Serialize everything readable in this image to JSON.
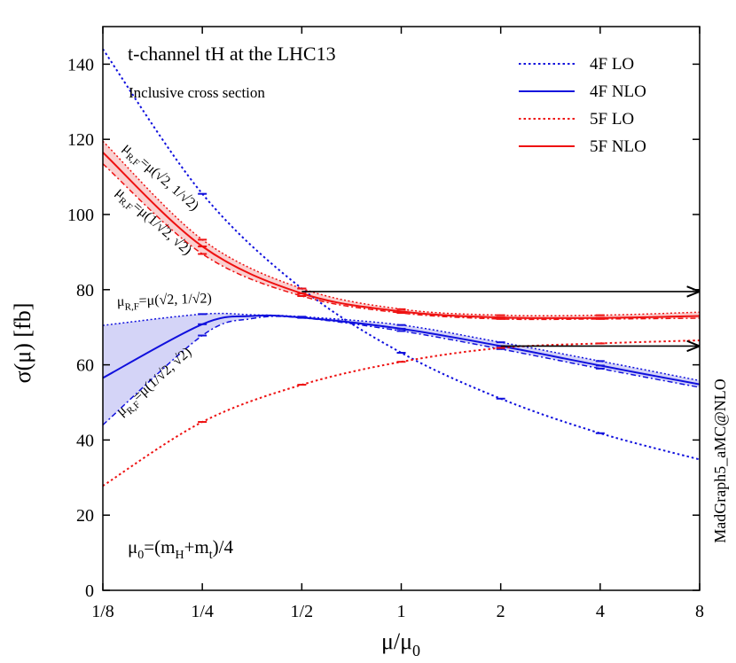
{
  "chart_data": {
    "type": "line",
    "title": "t-channel tH   at the LHC13",
    "subtitle": "Inclusive cross section",
    "xlabel": "μ/μ0",
    "ylabel": "σ(μ)   [fb]",
    "x_scale": "log2",
    "xlim": [
      0.125,
      8
    ],
    "ylim": [
      0,
      150
    ],
    "xticks": [
      {
        "value": 0.125,
        "label": "1/8"
      },
      {
        "value": 0.25,
        "label": "1/4"
      },
      {
        "value": 0.5,
        "label": "1/2"
      },
      {
        "value": 1,
        "label": "1"
      },
      {
        "value": 2,
        "label": "2"
      },
      {
        "value": 4,
        "label": "4"
      },
      {
        "value": 8,
        "label": "8"
      }
    ],
    "yticks": [
      0,
      20,
      40,
      60,
      80,
      100,
      120,
      140
    ],
    "grid": false,
    "legend_position": "top-right",
    "scale_annotation": "μ0=(mH+mt)/4",
    "generator_label": "MadGraph5_aMC@NLO",
    "scale_labels": {
      "upper": "μR,F=μ(√2, 1/√2)",
      "lower": "μR,F=μ(1/√2, √2)"
    },
    "series": [
      {
        "name": "4F  LO",
        "color": "#1010dd",
        "style": "dotted",
        "x": [
          0.125,
          0.25,
          0.5,
          1,
          2,
          4,
          8
        ],
        "y": [
          144,
          105.5,
          80.3,
          63.2,
          51.0,
          41.8,
          34.8
        ]
      },
      {
        "name": "4F  NLO",
        "color": "#1010dd",
        "style": "solid",
        "x": [
          0.125,
          0.25,
          0.3536,
          0.5,
          1,
          2,
          4,
          8
        ],
        "y": [
          56.5,
          70.8,
          73.0,
          72.6,
          69.6,
          65.0,
          59.8,
          54.8
        ],
        "band_upper": [
          70.5,
          73.5,
          73.3,
          72.8,
          70.6,
          66.0,
          61.0,
          55.8
        ],
        "band_lower": [
          44.0,
          67.8,
          72.3,
          72.5,
          69.0,
          64.2,
          59.0,
          54.0
        ]
      },
      {
        "name": "5F  LO",
        "color": "#ee1111",
        "style": "dotted",
        "x": [
          0.125,
          0.25,
          0.5,
          1,
          2,
          4,
          8
        ],
        "y": [
          27.8,
          44.8,
          54.7,
          60.8,
          64.5,
          65.7,
          66.5
        ]
      },
      {
        "name": "5F  NLO",
        "color": "#ee1111",
        "style": "solid",
        "x": [
          0.125,
          0.25,
          0.5,
          1,
          2,
          4,
          8
        ],
        "y": [
          116.5,
          91.5,
          79.0,
          74.2,
          72.6,
          72.5,
          73.0
        ],
        "band_upper": [
          119.5,
          93.3,
          80.3,
          74.8,
          73.2,
          73.2,
          74.0
        ],
        "band_lower": [
          113.5,
          89.5,
          78.3,
          73.8,
          72.2,
          72.2,
          72.4
        ]
      }
    ],
    "arrows": [
      {
        "x_from": 0.5,
        "x_to": 8,
        "y": 79.5
      },
      {
        "x_from": 2,
        "x_to": 8,
        "y": 65.0
      }
    ]
  }
}
